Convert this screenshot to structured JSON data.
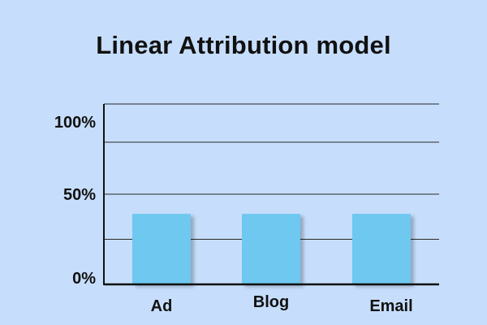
{
  "chart_data": {
    "type": "bar",
    "title": "Linear Attribution model",
    "categories": [
      "Ad",
      "Blog",
      "Email"
    ],
    "values": [
      40,
      40,
      40
    ],
    "ylim": [
      0,
      100
    ],
    "yticks": [
      "0%",
      "50%",
      "100%"
    ],
    "ytick_values": [
      0,
      50,
      100
    ],
    "grid": true,
    "bar_color": "#6ec8ef",
    "background_color": "#c6defc",
    "text_color": "#111111"
  }
}
